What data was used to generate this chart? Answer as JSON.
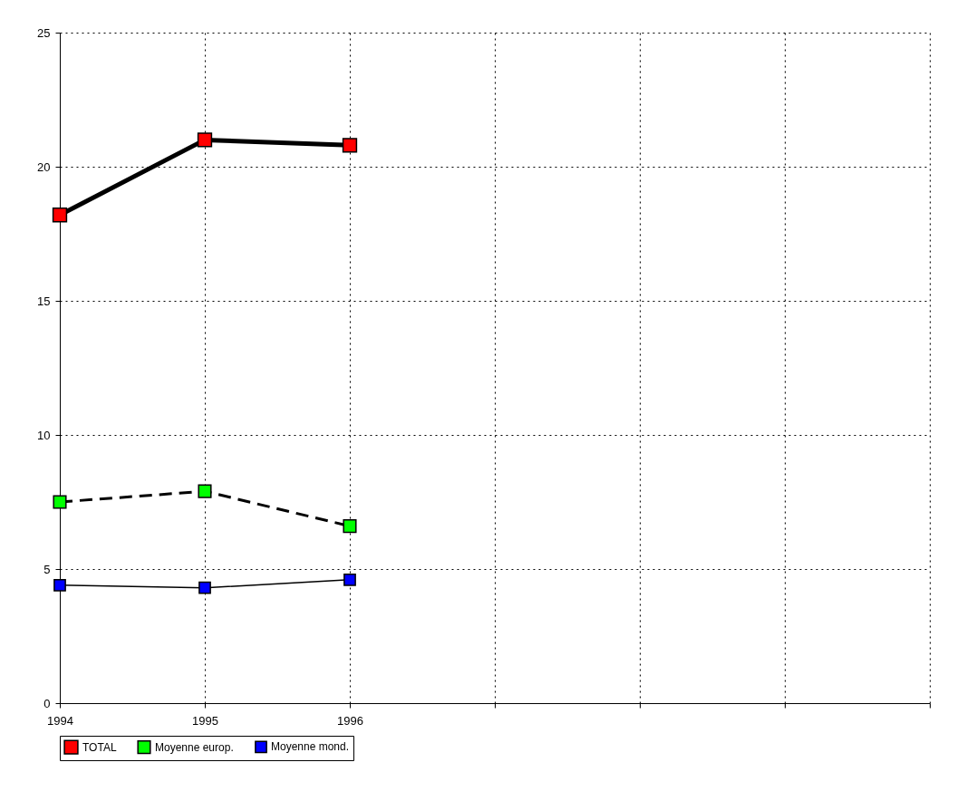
{
  "chart_data": {
    "type": "line",
    "categories": [
      "1994",
      "1995",
      "1996",
      null,
      null,
      null,
      null
    ],
    "series": [
      {
        "name": "TOTAL",
        "color": "#ff0000",
        "values": [
          18.2,
          21.0,
          20.8,
          null,
          null,
          null,
          null
        ],
        "line_style": "solid"
      },
      {
        "name": "Moyenne europ.",
        "color": "#00ff00",
        "values": [
          7.5,
          7.9,
          6.6,
          null,
          null,
          null,
          null
        ],
        "line_style": "dashed"
      },
      {
        "name": "Moyenne mond.",
        "color": "#0000ff",
        "values": [
          4.4,
          4.3,
          4.6,
          null,
          null,
          null,
          null
        ],
        "line_style": "solid"
      }
    ],
    "ylim": [
      0,
      25
    ],
    "yticks": [
      0,
      5,
      10,
      15,
      20,
      25
    ],
    "grid": true,
    "legend": "bottom",
    "marker": "square"
  }
}
